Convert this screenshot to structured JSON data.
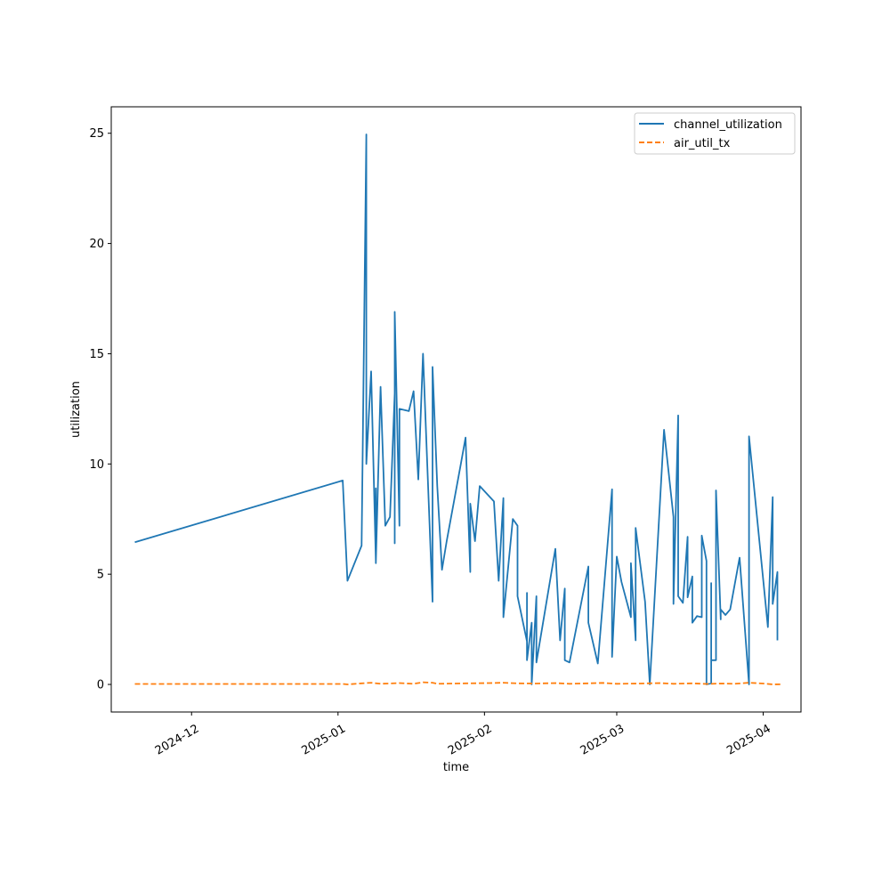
{
  "chart_data": {
    "type": "line",
    "title": "",
    "xlabel": "time",
    "ylabel": "utilization",
    "xlim": [
      "2024-11-14",
      "2025-04-09"
    ],
    "ylim": [
      -1.25,
      26.2
    ],
    "x_ticks": [
      "2024-12-01",
      "2025-01-01",
      "2025-02-01",
      "2025-03-01",
      "2025-04-01"
    ],
    "x_tick_labels": [
      "2024-12",
      "2025-01",
      "2025-02",
      "2025-03",
      "2025-04"
    ],
    "y_ticks": [
      0,
      5,
      10,
      15,
      20,
      25
    ],
    "grid": false,
    "legend_position": "top-right",
    "series": [
      {
        "name": "channel_utilization",
        "color": "#1f77b4",
        "dash": "solid",
        "points": [
          [
            "2024-11-19",
            6.45
          ],
          [
            "2025-01-02",
            9.25
          ],
          [
            "2025-01-03",
            4.7
          ],
          [
            "2025-01-06",
            6.3
          ],
          [
            "2025-01-07",
            24.95
          ],
          [
            "2025-01-07",
            10.0
          ],
          [
            "2025-01-08",
            14.2
          ],
          [
            "2025-01-09",
            5.6
          ],
          [
            "2025-01-09",
            8.9
          ],
          [
            "2025-01-09",
            5.5
          ],
          [
            "2025-01-10",
            13.5
          ],
          [
            "2025-01-11",
            7.2
          ],
          [
            "2025-01-12",
            7.6
          ],
          [
            "2025-01-13",
            13.2
          ],
          [
            "2025-01-13",
            6.4
          ],
          [
            "2025-01-13",
            16.9
          ],
          [
            "2025-01-14",
            7.2
          ],
          [
            "2025-01-14",
            12.5
          ],
          [
            "2025-01-16",
            12.4
          ],
          [
            "2025-01-17",
            13.3
          ],
          [
            "2025-01-18",
            9.3
          ],
          [
            "2025-01-19",
            15.0
          ],
          [
            "2025-01-21",
            3.75
          ],
          [
            "2025-01-21",
            14.4
          ],
          [
            "2025-01-22",
            9.0
          ],
          [
            "2025-01-23",
            5.2
          ],
          [
            "2025-01-24",
            6.5
          ],
          [
            "2025-01-27",
            10.0
          ],
          [
            "2025-01-28",
            11.2
          ],
          [
            "2025-01-29",
            5.1
          ],
          [
            "2025-01-29",
            8.2
          ],
          [
            "2025-01-30",
            6.5
          ],
          [
            "2025-01-31",
            9.0
          ],
          [
            "2025-02-03",
            8.3
          ],
          [
            "2025-02-04",
            4.7
          ],
          [
            "2025-02-05",
            8.45
          ],
          [
            "2025-02-05",
            3.05
          ],
          [
            "2025-02-07",
            7.5
          ],
          [
            "2025-02-08",
            7.2
          ],
          [
            "2025-02-08",
            4.0
          ],
          [
            "2025-02-10",
            1.95
          ],
          [
            "2025-02-10",
            4.15
          ],
          [
            "2025-02-10",
            1.1
          ],
          [
            "2025-02-11",
            2.8
          ],
          [
            "2025-02-11",
            0.0
          ],
          [
            "2025-02-12",
            4.0
          ],
          [
            "2025-02-12",
            1.0
          ],
          [
            "2025-02-16",
            6.15
          ],
          [
            "2025-02-17",
            2.0
          ],
          [
            "2025-02-18",
            4.35
          ],
          [
            "2025-02-18",
            1.1
          ],
          [
            "2025-02-19",
            1.0
          ],
          [
            "2025-02-23",
            5.35
          ],
          [
            "2025-02-23",
            2.8
          ],
          [
            "2025-02-25",
            0.95
          ],
          [
            "2025-02-28",
            8.85
          ],
          [
            "2025-02-28",
            1.25
          ],
          [
            "2025-03-01",
            5.8
          ],
          [
            "2025-03-02",
            4.65
          ],
          [
            "2025-03-04",
            3.05
          ],
          [
            "2025-03-04",
            5.5
          ],
          [
            "2025-03-05",
            2.0
          ],
          [
            "2025-03-05",
            7.1
          ],
          [
            "2025-03-07",
            3.75
          ],
          [
            "2025-03-08",
            0.0
          ],
          [
            "2025-03-11",
            11.55
          ],
          [
            "2025-03-13",
            7.6
          ],
          [
            "2025-03-13",
            3.65
          ],
          [
            "2025-03-14",
            12.2
          ],
          [
            "2025-03-14",
            4.0
          ],
          [
            "2025-03-15",
            3.7
          ],
          [
            "2025-03-16",
            6.7
          ],
          [
            "2025-03-16",
            3.95
          ],
          [
            "2025-03-17",
            4.9
          ],
          [
            "2025-03-17",
            2.8
          ],
          [
            "2025-03-18",
            3.1
          ],
          [
            "2025-03-19",
            3.05
          ],
          [
            "2025-03-19",
            6.75
          ],
          [
            "2025-03-20",
            5.6
          ],
          [
            "2025-03-20",
            0.0
          ],
          [
            "2025-03-21",
            0.05
          ],
          [
            "2025-03-21",
            4.6
          ],
          [
            "2025-03-21",
            1.1
          ],
          [
            "2025-03-22",
            1.1
          ],
          [
            "2025-03-22",
            8.8
          ],
          [
            "2025-03-23",
            2.95
          ],
          [
            "2025-03-23",
            3.4
          ],
          [
            "2025-03-24",
            3.15
          ],
          [
            "2025-03-25",
            3.4
          ],
          [
            "2025-03-27",
            5.75
          ],
          [
            "2025-03-29",
            0.0
          ],
          [
            "2025-03-29",
            11.25
          ],
          [
            "2025-04-02",
            2.6
          ],
          [
            "2025-04-03",
            8.5
          ],
          [
            "2025-04-03",
            3.65
          ],
          [
            "2025-04-04",
            5.1
          ],
          [
            "2025-04-04",
            2.0
          ]
        ]
      },
      {
        "name": "air_util_tx",
        "color": "#ff7f0e",
        "dash": "dashed",
        "points": [
          [
            "2024-11-19",
            0.02
          ],
          [
            "2025-01-02",
            0.02
          ],
          [
            "2025-01-03",
            0.0
          ],
          [
            "2025-01-06",
            0.05
          ],
          [
            "2025-01-08",
            0.08
          ],
          [
            "2025-01-10",
            0.03
          ],
          [
            "2025-01-14",
            0.06
          ],
          [
            "2025-01-17",
            0.03
          ],
          [
            "2025-01-19",
            0.1
          ],
          [
            "2025-01-21",
            0.08
          ],
          [
            "2025-01-22",
            0.03
          ],
          [
            "2025-01-28",
            0.05
          ],
          [
            "2025-02-02",
            0.06
          ],
          [
            "2025-02-05",
            0.08
          ],
          [
            "2025-02-08",
            0.05
          ],
          [
            "2025-02-12",
            0.04
          ],
          [
            "2025-02-16",
            0.06
          ],
          [
            "2025-02-19",
            0.03
          ],
          [
            "2025-02-23",
            0.05
          ],
          [
            "2025-02-26",
            0.07
          ],
          [
            "2025-03-01",
            0.03
          ],
          [
            "2025-03-06",
            0.04
          ],
          [
            "2025-03-10",
            0.06
          ],
          [
            "2025-03-13",
            0.03
          ],
          [
            "2025-03-17",
            0.05
          ],
          [
            "2025-03-20",
            0.02
          ],
          [
            "2025-03-23",
            0.04
          ],
          [
            "2025-03-26",
            0.03
          ],
          [
            "2025-03-29",
            0.08
          ],
          [
            "2025-04-01",
            0.04
          ],
          [
            "2025-04-03",
            0.0
          ],
          [
            "2025-04-05",
            0.01
          ]
        ]
      }
    ]
  }
}
